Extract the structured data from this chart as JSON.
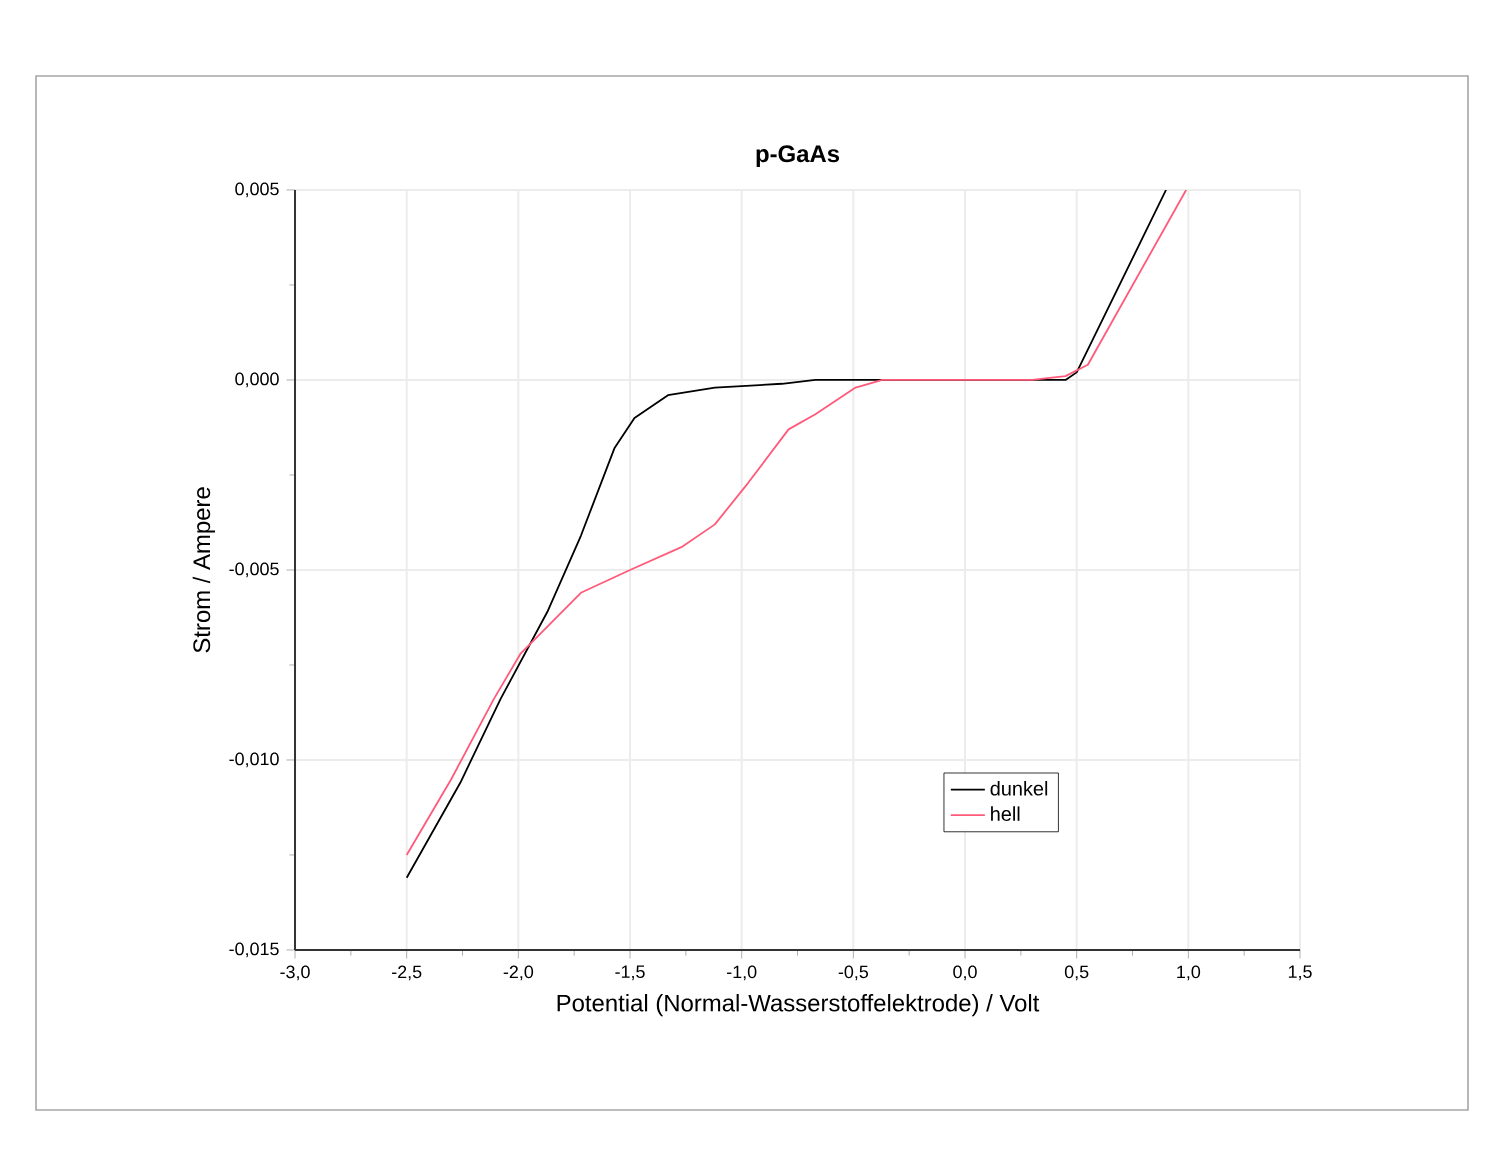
{
  "chart_data": {
    "type": "line",
    "title": "p-GaAs",
    "xlabel": "Potential (Normal-Wasserstoffelektrode) / Volt",
    "ylabel": "Strom / Ampere",
    "xlim": [
      -3,
      1.5
    ],
    "ylim": [
      -0.015,
      0.005
    ],
    "xticks": [
      {
        "value": -3,
        "label": "-3,0"
      },
      {
        "value": -2.5,
        "label": "-2,5"
      },
      {
        "value": -2,
        "label": "-2,0"
      },
      {
        "value": -1.5,
        "label": "-1,5"
      },
      {
        "value": -1,
        "label": "-1,0"
      },
      {
        "value": -0.5,
        "label": "-0,5"
      },
      {
        "value": 0,
        "label": "0,0"
      },
      {
        "value": 0.5,
        "label": "0,5"
      },
      {
        "value": 1,
        "label": "1,0"
      },
      {
        "value": 1.5,
        "label": "1,5"
      }
    ],
    "yticks": [
      {
        "value": -0.015,
        "label": "-0,015"
      },
      {
        "value": -0.01,
        "label": "-0,010"
      },
      {
        "value": -0.005,
        "label": "-0,005"
      },
      {
        "value": 0,
        "label": "0,000"
      },
      {
        "value": 0.005,
        "label": "0,005"
      }
    ],
    "grid": true,
    "legend": "bottom right",
    "line_style": "solid",
    "marker": "none",
    "series": [
      {
        "name": "dunkel",
        "color": "#000000",
        "x": [
          -2.5,
          -2.26,
          -2.08,
          -1.87,
          -1.72,
          -1.57,
          -1.48,
          -1.33,
          -1.12,
          -0.82,
          -0.67,
          -0.3,
          0,
          0.3,
          0.45,
          0.5,
          0.9
        ],
        "values": [
          -0.0131,
          -0.0106,
          -0.0084,
          -0.0061,
          -0.0041,
          -0.0018,
          -0.001,
          -0.0004,
          -0.0002,
          -0.0001,
          0,
          0,
          0,
          0,
          0,
          0.0002,
          0.005
        ]
      },
      {
        "name": "hell",
        "color": "#ff5a7a",
        "x": [
          -2.5,
          -2.3,
          -2.11,
          -1.99,
          -1.72,
          -1.5,
          -1.27,
          -1.12,
          -0.97,
          -0.79,
          -0.67,
          -0.49,
          -0.37,
          0,
          0.3,
          0.45,
          0.55,
          0.99
        ],
        "values": [
          -0.0125,
          -0.0105,
          -0.0084,
          -0.0072,
          -0.0056,
          -0.005,
          -0.0044,
          -0.0038,
          -0.0027,
          -0.0013,
          -0.0009,
          -0.0002,
          0,
          0,
          0,
          0.0001,
          0.0004,
          0.005
        ]
      }
    ]
  }
}
